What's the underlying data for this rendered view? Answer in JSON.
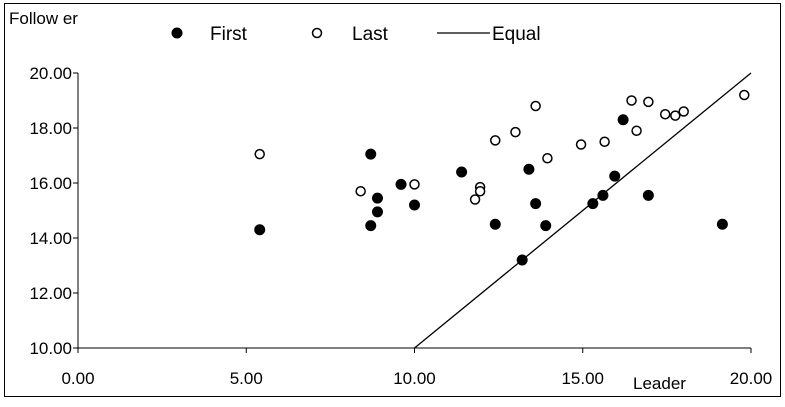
{
  "chart_data": {
    "type": "scatter",
    "xlabel": "Leader",
    "ylabel": "Follow er",
    "xlim": [
      0,
      20
    ],
    "ylim": [
      10,
      20
    ],
    "x_ticks": [
      "0.00",
      "5.00",
      "10.00",
      "15.00",
      "20.00"
    ],
    "y_ticks": [
      "10.00",
      "12.00",
      "14.00",
      "16.00",
      "18.00",
      "20.00"
    ],
    "grid": false,
    "legend_position": "top",
    "series": [
      {
        "name": "First",
        "marker": "filled-circle",
        "color": "#000000",
        "x": [
          5.4,
          8.7,
          8.7,
          8.9,
          8.9,
          9.6,
          10.0,
          11.4,
          12.4,
          13.2,
          13.4,
          13.6,
          13.9,
          15.3,
          15.6,
          15.95,
          16.2,
          16.95,
          19.15
        ],
        "y": [
          14.3,
          17.05,
          14.45,
          15.45,
          14.95,
          15.95,
          15.2,
          16.4,
          14.5,
          13.2,
          16.5,
          15.25,
          14.45,
          15.25,
          15.55,
          16.25,
          18.3,
          15.55,
          14.5
        ]
      },
      {
        "name": "Last",
        "marker": "open-circle",
        "color": "#000000",
        "x": [
          5.4,
          8.4,
          10.0,
          11.8,
          11.95,
          11.95,
          12.4,
          13.0,
          13.6,
          13.95,
          14.95,
          15.65,
          16.45,
          16.6,
          16.95,
          17.45,
          17.75,
          18.0,
          19.8
        ],
        "y": [
          17.05,
          15.7,
          15.95,
          15.4,
          15.85,
          15.7,
          17.55,
          17.85,
          18.8,
          16.9,
          17.4,
          17.5,
          19.0,
          17.9,
          18.95,
          18.5,
          18.45,
          18.6,
          19.2
        ]
      },
      {
        "name": "Equal",
        "marker": "line",
        "color": "#000000",
        "x": [
          10,
          20
        ],
        "y": [
          10,
          20
        ]
      }
    ]
  }
}
